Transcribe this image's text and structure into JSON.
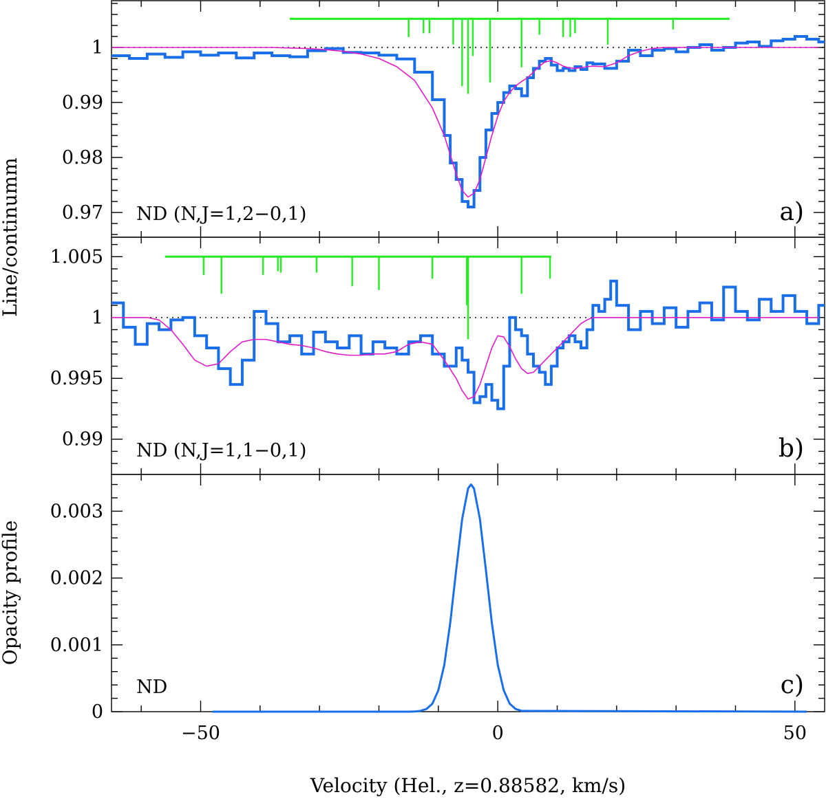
{
  "figure": {
    "ylabel_top": "Line/continumm",
    "ylabel_bottom": "Opacity profile",
    "xlabel": "Velocity (Hel., z=0.88582, km/s)",
    "x_tick_labels": [
      "−50",
      "0",
      "50"
    ]
  },
  "colors": {
    "data": "#1a6fe8",
    "model": "#e01bc8",
    "components": "#22ee22",
    "continuum": "#000000"
  },
  "chart_data": [
    {
      "type": "line",
      "panel_letter": "a)",
      "label": "ND (N,J=1,2−0,1)",
      "xlim": [
        -65,
        55
      ],
      "ylim": [
        0.9655,
        1.0085
      ],
      "yticks": [
        0.97,
        0.98,
        0.99,
        1
      ],
      "ytick_labels": [
        "0.97",
        "0.98",
        "0.99",
        "1"
      ],
      "continuum_level": 1.0,
      "x": [
        -65,
        -62,
        -59,
        -56,
        -53,
        -50,
        -47,
        -44,
        -41,
        -38,
        -35,
        -32,
        -29,
        -26,
        -23,
        -20,
        -17,
        -14,
        -11,
        -9,
        -8,
        -7,
        -6,
        -5,
        -4,
        -3,
        -2,
        -1,
        0,
        1,
        2,
        3,
        4,
        5,
        6,
        7,
        8,
        9,
        10,
        11,
        12,
        13,
        14,
        15,
        16,
        18,
        20,
        22,
        24,
        26,
        28,
        30,
        32,
        34,
        36,
        38,
        40,
        42,
        44,
        46,
        48,
        50,
        52,
        54
      ],
      "series": [
        {
          "name": "spectrum",
          "step": true,
          "values": [
            0.9985,
            0.998,
            0.9988,
            0.9982,
            0.9992,
            0.9986,
            0.999,
            0.9981,
            0.999,
            0.9985,
            0.9983,
            0.9994,
            0.9998,
            0.9991,
            0.999,
            0.9986,
            0.9979,
            0.9955,
            0.9905,
            0.984,
            0.979,
            0.976,
            0.972,
            0.971,
            0.974,
            0.98,
            0.985,
            0.988,
            0.99,
            0.9918,
            0.993,
            0.9925,
            0.9912,
            0.9945,
            0.9962,
            0.9975,
            0.998,
            0.9968,
            0.9958,
            0.9962,
            0.9958,
            0.9965,
            0.996,
            0.9972,
            0.997,
            0.9962,
            0.9975,
            0.9995,
            0.9985,
            0.9995,
            0.9998,
            0.9992,
            1.0,
            1.0005,
            0.9995,
            1.0,
            1.0008,
            1.001,
            1.0002,
            1.0012,
            1.0015,
            1.002,
            1.0015,
            1.001
          ]
        },
        {
          "name": "model",
          "step": false,
          "values": [
            1.0,
            1.0,
            1.0,
            1.0,
            1.0,
            1.0,
            1.0,
            1.0,
            1.0,
            1.0,
            0.9999,
            0.9998,
            0.9996,
            0.9993,
            0.9988,
            0.998,
            0.9965,
            0.994,
            0.989,
            0.984,
            0.9805,
            0.977,
            0.974,
            0.9728,
            0.9735,
            0.976,
            0.98,
            0.984,
            0.9875,
            0.9902,
            0.9918,
            0.993,
            0.9938,
            0.9945,
            0.9955,
            0.9966,
            0.9974,
            0.9976,
            0.9972,
            0.9966,
            0.9963,
            0.9962,
            0.9963,
            0.9965,
            0.9966,
            0.9965,
            0.9972,
            0.9985,
            0.9993,
            0.9998,
            1.0,
            1.0,
            1.0,
            1.0,
            1.0,
            1.0,
            1.0,
            1.0,
            1.0,
            1.0,
            1.0,
            1.0,
            1.0,
            1.0
          ]
        }
      ],
      "components": {
        "base": 1.0052,
        "xrange": [
          -35,
          39
        ],
        "x": [
          -15,
          -12.5,
          -11.5,
          -7.5,
          -6,
          -5,
          -4.2,
          -1.3,
          4,
          7,
          11,
          12.2,
          13,
          18.5,
          29.5
        ],
        "strength": [
          0.15,
          0.1,
          0.1,
          0.25,
          0.8,
          0.9,
          0.4,
          0.75,
          0.55,
          0.12,
          0.15,
          0.15,
          0.1,
          0.25,
          0.05
        ]
      }
    },
    {
      "type": "line",
      "panel_letter": "b)",
      "label": "ND (N,J=1,1−0,1)",
      "xlim": [
        -65,
        55
      ],
      "ylim": [
        0.9871,
        1.0066
      ],
      "yticks": [
        0.99,
        0.995,
        1,
        1.005
      ],
      "ytick_labels": [
        "0.99",
        "0.995",
        "1",
        "1.005"
      ],
      "continuum_level": 1.0,
      "x": [
        -65,
        -63,
        -61,
        -59,
        -57,
        -55,
        -53,
        -51,
        -49,
        -47,
        -45,
        -43,
        -41,
        -39,
        -37,
        -35,
        -33,
        -31,
        -29,
        -27,
        -25,
        -23,
        -21,
        -19,
        -17,
        -15,
        -13,
        -11,
        -9,
        -7,
        -6,
        -5,
        -4,
        -3,
        -2,
        -1,
        0,
        1,
        2,
        3,
        4,
        5,
        6,
        7,
        8,
        9,
        10,
        11,
        12,
        13,
        14,
        15,
        16,
        17,
        18,
        19,
        20,
        22,
        24,
        26,
        28,
        30,
        32,
        34,
        36,
        38,
        40,
        42,
        44,
        46,
        48,
        50,
        52,
        54
      ],
      "series": [
        {
          "name": "spectrum",
          "step": true,
          "values": [
            1.0012,
            0.9992,
            0.9978,
            0.9995,
            0.999,
            0.9998,
            1.0,
            0.9985,
            0.9975,
            0.9958,
            0.9945,
            0.9965,
            1.0005,
            0.9995,
            0.998,
            0.9985,
            0.997,
            0.9988,
            0.998,
            0.9975,
            0.9985,
            0.997,
            0.998,
            0.9975,
            0.997,
            0.998,
            0.9985,
            0.997,
            0.996,
            0.9975,
            0.9965,
            0.9955,
            0.993,
            0.9935,
            0.9945,
            0.9932,
            0.9925,
            0.996,
            1.0,
            0.999,
            0.9985,
            0.997,
            0.996,
            0.9955,
            0.9945,
            0.996,
            0.9975,
            0.998,
            0.9985,
            0.998,
            0.9975,
            0.999,
            1.001,
            1.0005,
            1.0015,
            1.003,
            1.001,
            0.999,
            1.0005,
            0.9995,
            1.0008,
            0.9992,
            1.0005,
            1.0012,
            0.9998,
            1.0025,
            1.0005,
            0.9998,
            1.0015,
            1.0005,
            1.0018,
            1.0005,
            0.9995,
            1.001
          ]
        },
        {
          "name": "model",
          "step": false,
          "values": [
            1.0,
            1.0,
            1.0,
            1.0,
            0.9998,
            0.999,
            0.9978,
            0.9965,
            0.996,
            0.9962,
            0.9972,
            0.998,
            0.9982,
            0.9982,
            0.998,
            0.9978,
            0.9977,
            0.9975,
            0.9972,
            0.997,
            0.9969,
            0.9969,
            0.997,
            0.997,
            0.9972,
            0.9978,
            0.998,
            0.9978,
            0.9965,
            0.995,
            0.994,
            0.9933,
            0.9935,
            0.9945,
            0.996,
            0.9975,
            0.9985,
            0.9984,
            0.9976,
            0.9966,
            0.9958,
            0.9954,
            0.9955,
            0.996,
            0.9965,
            0.997,
            0.9975,
            0.998,
            0.9985,
            0.999,
            0.9995,
            0.9998,
            1.0,
            1.0,
            1.0,
            1.0,
            1.0,
            1.0,
            1.0,
            1.0,
            1.0,
            1.0,
            1.0,
            1.0,
            1.0,
            1.0,
            1.0,
            1.0,
            1.0,
            1.0,
            1.0,
            1.0,
            1.0,
            1.0
          ]
        }
      ],
      "components": {
        "base": 1.005,
        "xrange": [
          -56,
          9
        ],
        "x": [
          -49.5,
          -46.5,
          -39.5,
          -37,
          -36.5,
          -30.5,
          -24.5,
          -20,
          -11,
          -5.2,
          -5,
          4,
          8.8
        ],
        "strength": [
          0.15,
          0.4,
          0.15,
          0.1,
          0.12,
          0.12,
          0.3,
          0.35,
          0.2,
          0.55,
          1.0,
          0.4,
          0.2
        ]
      }
    },
    {
      "type": "line",
      "panel_letter": "c)",
      "label": "ND",
      "xlim": [
        -65,
        55
      ],
      "ylim": [
        0,
        0.00355
      ],
      "yticks": [
        0,
        0.001,
        0.002,
        0.003
      ],
      "ytick_labels": [
        "0",
        "0.001",
        "0.002",
        "0.003"
      ],
      "xticks": [
        -50,
        0,
        50
      ],
      "x": [
        -48,
        -15,
        -14,
        -13,
        -12,
        -11,
        -10,
        -9,
        -8,
        -7,
        -6,
        -5,
        -4.5,
        -4,
        -3,
        -2,
        -1,
        0,
        1,
        2,
        3,
        4,
        52
      ],
      "series": [
        {
          "name": "opacity",
          "step": false,
          "values": [
            0,
            0,
            3e-06,
            1.2e-05,
            4e-05,
            0.00012,
            0.00032,
            0.0007,
            0.00133,
            0.00212,
            0.00288,
            0.00334,
            0.0034,
            0.00334,
            0.00288,
            0.00212,
            0.00133,
            0.0007,
            0.00032,
            0.00012,
            4e-05,
            1.2e-05,
            0
          ]
        }
      ]
    }
  ]
}
